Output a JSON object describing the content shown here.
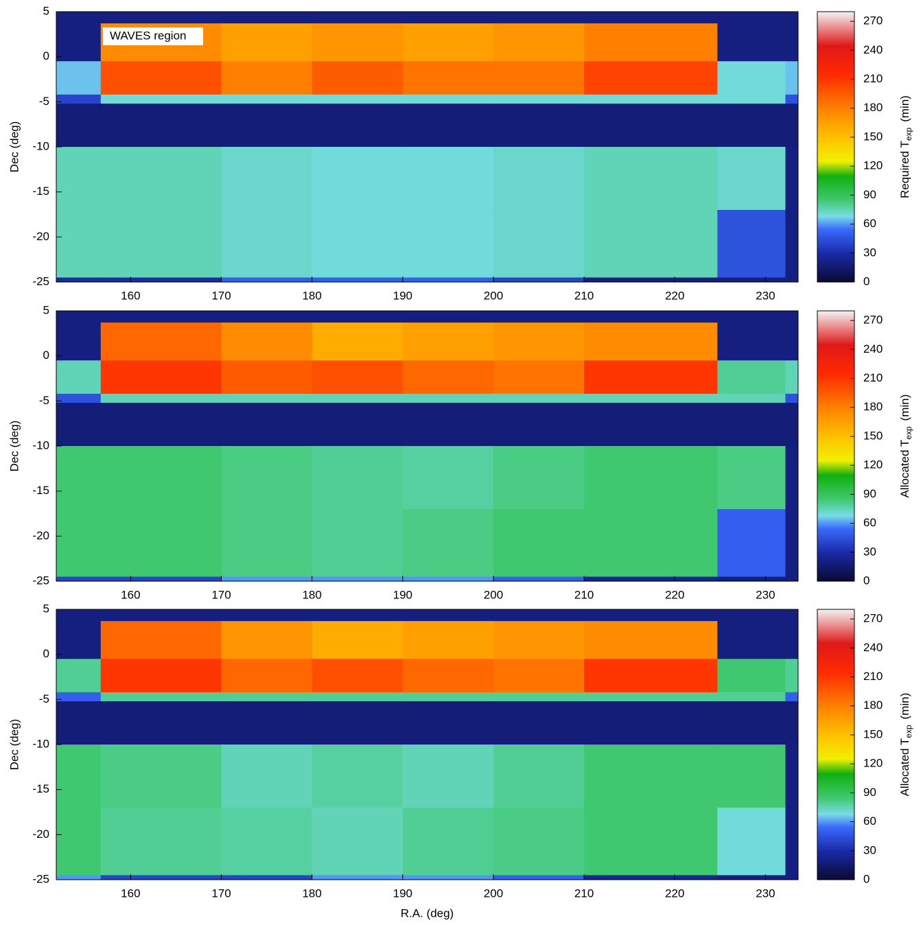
{
  "chart_data": [
    {
      "type": "heatmap",
      "ylabel": "Dec  (deg)",
      "annotation": "WAVES region",
      "cbar_label": "Required T",
      "cbar_label_sub": "exp",
      "cbar_label_unit": "(min)",
      "xlim": [
        151.8,
        233.6
      ],
      "ylim": [
        -25,
        5
      ],
      "xticks": [
        160,
        170,
        180,
        190,
        200,
        210,
        220,
        230
      ],
      "yticks": [
        5,
        0,
        -5,
        -10,
        -15,
        -20,
        -25
      ],
      "clim": [
        0,
        280
      ],
      "cticks": [
        0,
        30,
        60,
        90,
        120,
        150,
        180,
        210,
        240,
        270
      ],
      "colormap": [
        [
          0,
          "#0a0a30"
        ],
        [
          30,
          "#1a2aa8"
        ],
        [
          55,
          "#3a6cff"
        ],
        [
          68,
          "#78dce8"
        ],
        [
          85,
          "#40c870"
        ],
        [
          110,
          "#10b010"
        ],
        [
          125,
          "#f0f000"
        ],
        [
          150,
          "#ffc000"
        ],
        [
          180,
          "#ff8000"
        ],
        [
          215,
          "#ff2a00"
        ],
        [
          245,
          "#e01818"
        ],
        [
          280,
          "#f4f4f4"
        ]
      ],
      "x_edges": [
        151.8,
        156.7,
        170,
        180,
        190,
        200,
        210,
        224.7,
        232.2,
        233.6
      ],
      "y_edges": [
        5,
        3.7,
        -0.5,
        -4.2,
        -5.2,
        -10,
        -17,
        -24.5,
        -25
      ],
      "z": [
        [
          20,
          20,
          20,
          20,
          20,
          20,
          20,
          20,
          20
        ],
        [
          20,
          175,
          165,
          170,
          165,
          170,
          180,
          20,
          20
        ],
        [
          65,
          200,
          180,
          195,
          185,
          185,
          205,
          70,
          65
        ],
        [
          40,
          70,
          70,
          70,
          70,
          70,
          70,
          70,
          45
        ],
        [
          18,
          18,
          18,
          18,
          18,
          18,
          18,
          18,
          18
        ],
        [
          75,
          75,
          72,
          70,
          70,
          72,
          75,
          72,
          20
        ],
        [
          75,
          75,
          72,
          70,
          70,
          72,
          75,
          45,
          20
        ],
        [
          30,
          30,
          50,
          50,
          50,
          40,
          20,
          20,
          20
        ]
      ]
    },
    {
      "type": "heatmap",
      "ylabel": "Dec  (deg)",
      "cbar_label": "Allocated T",
      "cbar_label_sub": "exp",
      "cbar_label_unit": "(min)",
      "xlim": [
        151.8,
        233.6
      ],
      "ylim": [
        -25,
        5
      ],
      "xticks": [
        160,
        170,
        180,
        190,
        200,
        210,
        220,
        230
      ],
      "yticks": [
        5,
        0,
        -5,
        -10,
        -15,
        -20,
        -25
      ],
      "clim": [
        0,
        280
      ],
      "cticks": [
        0,
        30,
        60,
        90,
        120,
        150,
        180,
        210,
        240,
        270
      ],
      "colormap": [
        [
          0,
          "#0a0a30"
        ],
        [
          30,
          "#1a2aa8"
        ],
        [
          55,
          "#3a6cff"
        ],
        [
          68,
          "#78dce8"
        ],
        [
          85,
          "#40c870"
        ],
        [
          110,
          "#10b010"
        ],
        [
          125,
          "#f0f000"
        ],
        [
          150,
          "#ffc000"
        ],
        [
          180,
          "#ff8000"
        ],
        [
          215,
          "#ff2a00"
        ],
        [
          245,
          "#e01818"
        ],
        [
          280,
          "#f4f4f4"
        ]
      ],
      "x_edges": [
        151.8,
        156.7,
        170,
        180,
        190,
        200,
        210,
        224.7,
        232.2,
        233.6
      ],
      "y_edges": [
        5,
        3.7,
        -0.5,
        -4.2,
        -5.2,
        -10,
        -17,
        -24.5,
        -25
      ],
      "z": [
        [
          20,
          20,
          20,
          20,
          20,
          20,
          20,
          20,
          20
        ],
        [
          20,
          190,
          175,
          160,
          165,
          170,
          175,
          20,
          20
        ],
        [
          75,
          210,
          195,
          200,
          190,
          185,
          210,
          80,
          75
        ],
        [
          45,
          75,
          75,
          75,
          75,
          75,
          75,
          75,
          45
        ],
        [
          18,
          18,
          18,
          18,
          18,
          18,
          18,
          18,
          18
        ],
        [
          85,
          85,
          82,
          80,
          78,
          82,
          85,
          82,
          20
        ],
        [
          85,
          85,
          82,
          80,
          82,
          85,
          85,
          50,
          20
        ],
        [
          40,
          40,
          60,
          60,
          60,
          50,
          25,
          20,
          20
        ]
      ]
    },
    {
      "type": "heatmap",
      "ylabel": "Dec  (deg)",
      "xlabel": "R.A.  (deg)",
      "cbar_label": "Allocated T",
      "cbar_label_sub": "exp",
      "cbar_label_unit": "(min)",
      "xlim": [
        151.8,
        233.6
      ],
      "ylim": [
        -25,
        5
      ],
      "xticks": [
        160,
        170,
        180,
        190,
        200,
        210,
        220,
        230
      ],
      "yticks": [
        5,
        0,
        -5,
        -10,
        -15,
        -20,
        -25
      ],
      "clim": [
        0,
        280
      ],
      "cticks": [
        0,
        30,
        60,
        90,
        120,
        150,
        180,
        210,
        240,
        270
      ],
      "colormap": [
        [
          0,
          "#0a0a30"
        ],
        [
          30,
          "#1a2aa8"
        ],
        [
          55,
          "#3a6cff"
        ],
        [
          68,
          "#78dce8"
        ],
        [
          85,
          "#40c870"
        ],
        [
          110,
          "#10b010"
        ],
        [
          125,
          "#f0f000"
        ],
        [
          150,
          "#ffc000"
        ],
        [
          180,
          "#ff8000"
        ],
        [
          215,
          "#ff2a00"
        ],
        [
          245,
          "#e01818"
        ],
        [
          280,
          "#f4f4f4"
        ]
      ],
      "x_edges": [
        151.8,
        156.7,
        170,
        180,
        190,
        200,
        210,
        224.7,
        232.2,
        233.6
      ],
      "y_edges": [
        5,
        3.7,
        -0.5,
        -4.2,
        -5.2,
        -10,
        -17,
        -24.5,
        -25
      ],
      "z": [
        [
          20,
          20,
          20,
          20,
          20,
          20,
          20,
          20,
          20
        ],
        [
          20,
          190,
          170,
          160,
          165,
          170,
          175,
          20,
          20
        ],
        [
          80,
          210,
          190,
          200,
          190,
          185,
          210,
          85,
          80
        ],
        [
          50,
          80,
          80,
          80,
          80,
          80,
          80,
          80,
          50
        ],
        [
          18,
          18,
          18,
          18,
          18,
          18,
          18,
          18,
          18
        ],
        [
          85,
          82,
          75,
          78,
          75,
          80,
          85,
          85,
          20
        ],
        [
          85,
          80,
          78,
          75,
          80,
          82,
          85,
          70,
          20
        ],
        [
          60,
          40,
          40,
          60,
          60,
          50,
          25,
          20,
          20
        ]
      ]
    }
  ]
}
